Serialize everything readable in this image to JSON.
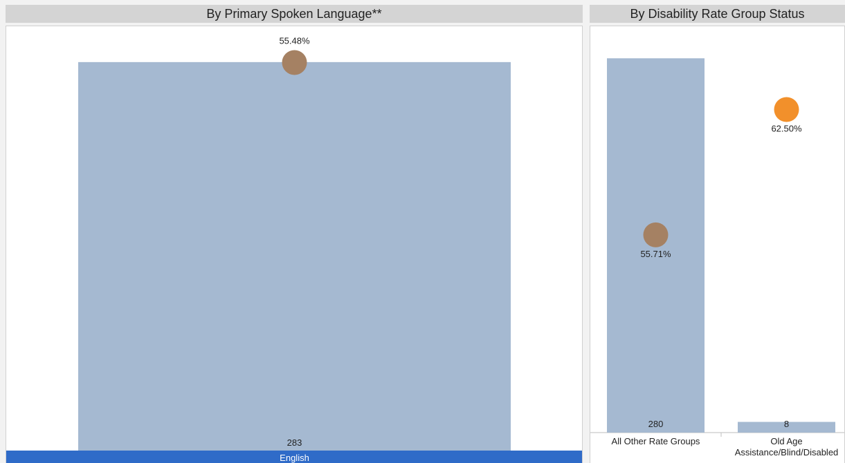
{
  "colors": {
    "bar": "#a5b9d1",
    "circle_brown": "#a58163",
    "circle_orange": "#f2902b",
    "highlight_band": "#2f6bc8",
    "header_bg": "#d4d4d4"
  },
  "chart_data": [
    {
      "type": "bar",
      "title": "By Primary Spoken Language**",
      "categories": [
        "English"
      ],
      "selected_category": "English",
      "series": [
        {
          "values": [
            283
          ],
          "labels": [
            "283"
          ]
        },
        {
          "values": [
            55.48
          ],
          "labels": [
            "55.48%"
          ],
          "marker": "circle",
          "colors": [
            "#a58163"
          ]
        }
      ],
      "ylim": [
        0,
        293
      ],
      "rate_ylim": [
        0,
        57.5
      ]
    },
    {
      "type": "bar",
      "title": "By Disability Rate Group Status",
      "categories": [
        "All Other Rate Groups",
        "Old Age Assistance/Blind/Disabled"
      ],
      "category_label_lines": [
        [
          "All Other Rate Groups"
        ],
        [
          "Old Age",
          "Assistance/Blind/Disabled"
        ]
      ],
      "series": [
        {
          "values": [
            280,
            8
          ],
          "labels": [
            "280",
            "8"
          ]
        },
        {
          "values": [
            55.71,
            62.5
          ],
          "labels": [
            "55.71%",
            "62.50%"
          ],
          "marker": "circle",
          "colors": [
            "#a58163",
            "#f2902b"
          ]
        }
      ],
      "ylim": [
        0,
        290
      ],
      "rate_ylim": [
        45,
        66
      ]
    }
  ]
}
